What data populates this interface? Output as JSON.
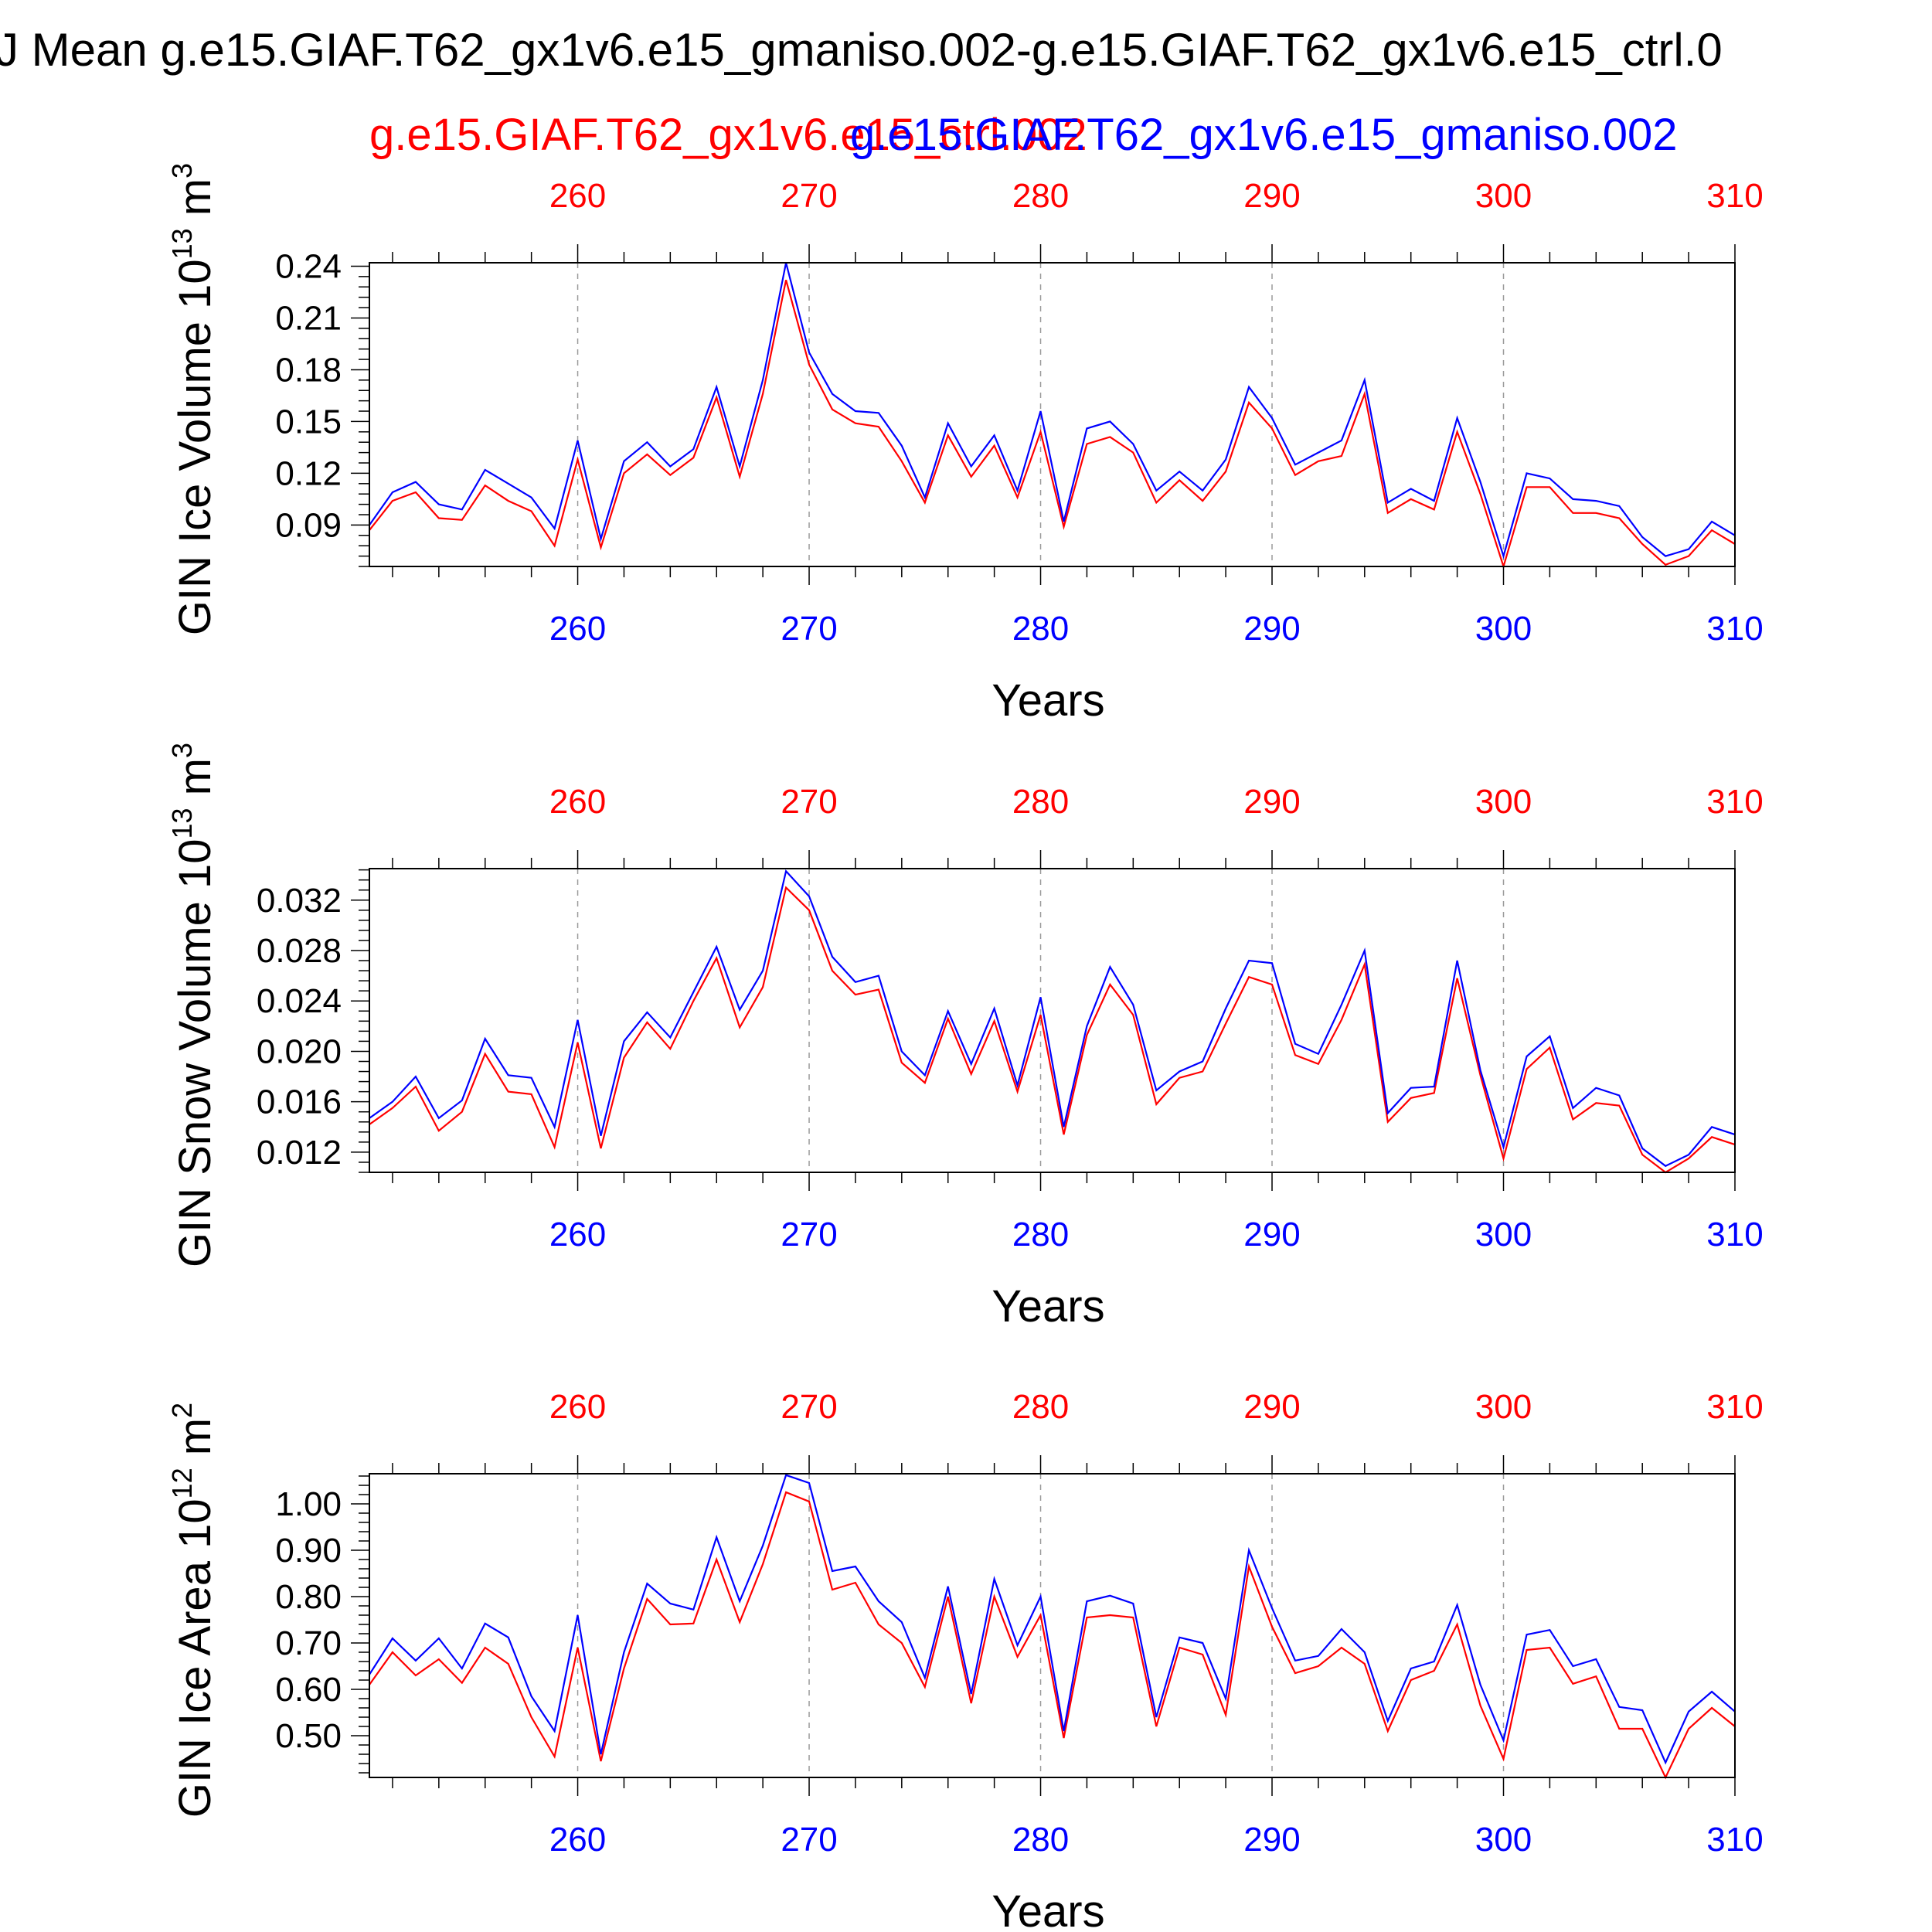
{
  "title": "J Mean g.e15.GIAF.T62_gx1v6.e15_gmaniso.002-g.e15.GIAF.T62_gx1v6.e15_ctrl.0",
  "legend": {
    "ctrl": "g.e15.GIAF.T62_gx1v6.e15_ctrl.002",
    "gmaniso": "g.e15.GIAF.T62_gx1v6.e15_gmaniso.002"
  },
  "colors": {
    "ctrl": "#ff0000",
    "gmaniso": "#0000ff",
    "axis": "#000000",
    "grid": "#9a9a9a"
  },
  "chart_data": [
    {
      "type": "line",
      "ylabel_base": "GIN Ice Volume 10",
      "ylabel_exp": "13",
      "ylabel_unit": " m",
      "ylabel_unit_exp": "3",
      "xlabel": "Years",
      "xlim": [
        251,
        310
      ],
      "ylim": [
        0.066,
        0.242
      ],
      "x_ticks": [
        260,
        270,
        280,
        290,
        300,
        310
      ],
      "y_ticks": [
        0.09,
        0.12,
        0.15,
        0.18,
        0.21,
        0.24
      ],
      "y_tick_labels": [
        "0.09",
        "0.12",
        "0.15",
        "0.18",
        "0.21",
        "0.24"
      ],
      "x_start": 251,
      "series": [
        {
          "name": "g.e15.GIAF.T62_gx1v6.e15_ctrl.002",
          "key": "ctrl",
          "values": [
            0.087,
            0.104,
            0.109,
            0.094,
            0.093,
            0.113,
            0.104,
            0.098,
            0.078,
            0.128,
            0.077,
            0.12,
            0.131,
            0.119,
            0.129,
            0.164,
            0.118,
            0.166,
            0.232,
            0.183,
            0.157,
            0.149,
            0.147,
            0.127,
            0.103,
            0.142,
            0.118,
            0.136,
            0.106,
            0.144,
            0.089,
            0.137,
            0.141,
            0.132,
            0.103,
            0.116,
            0.104,
            0.121,
            0.161,
            0.146,
            0.119,
            0.127,
            0.13,
            0.166,
            0.097,
            0.105,
            0.099,
            0.144,
            0.108,
            0.066,
            0.112,
            0.112,
            0.097,
            0.097,
            0.094,
            0.079,
            0.067,
            0.072,
            0.087,
            0.079
          ]
        },
        {
          "name": "g.e15.GIAF.T62_gx1v6.e15_gmaniso.002",
          "key": "gmaniso",
          "values": [
            0.09,
            0.109,
            0.115,
            0.102,
            0.099,
            0.122,
            0.114,
            0.106,
            0.088,
            0.139,
            0.082,
            0.127,
            0.138,
            0.124,
            0.134,
            0.17,
            0.124,
            0.174,
            0.242,
            0.19,
            0.166,
            0.156,
            0.155,
            0.136,
            0.106,
            0.149,
            0.124,
            0.142,
            0.11,
            0.156,
            0.092,
            0.146,
            0.15,
            0.137,
            0.11,
            0.121,
            0.11,
            0.128,
            0.17,
            0.152,
            0.125,
            0.132,
            0.139,
            0.174,
            0.103,
            0.111,
            0.104,
            0.152,
            0.115,
            0.072,
            0.12,
            0.117,
            0.105,
            0.104,
            0.101,
            0.083,
            0.072,
            0.076,
            0.092,
            0.084
          ]
        }
      ]
    },
    {
      "type": "line",
      "ylabel_base": "GIN Snow Volume 10",
      "ylabel_exp": "13",
      "ylabel_unit": " m",
      "ylabel_unit_exp": "3",
      "xlabel": "Years",
      "xlim": [
        251,
        310
      ],
      "ylim": [
        0.0104,
        0.0345
      ],
      "x_ticks": [
        260,
        270,
        280,
        290,
        300,
        310
      ],
      "y_ticks": [
        0.012,
        0.016,
        0.02,
        0.024,
        0.028,
        0.032
      ],
      "y_tick_labels": [
        "0.012",
        "0.016",
        "0.020",
        "0.024",
        "0.028",
        "0.032"
      ],
      "x_start": 251,
      "series": [
        {
          "name": "g.e15.GIAF.T62_gx1v6.e15_ctrl.002",
          "key": "ctrl",
          "values": [
            0.0142,
            0.0155,
            0.0172,
            0.0137,
            0.0152,
            0.0198,
            0.0168,
            0.0166,
            0.0124,
            0.0207,
            0.0123,
            0.0195,
            0.0223,
            0.0202,
            0.024,
            0.0274,
            0.0219,
            0.0251,
            0.033,
            0.0312,
            0.0264,
            0.0245,
            0.0249,
            0.0191,
            0.0175,
            0.0226,
            0.0182,
            0.0224,
            0.0168,
            0.0229,
            0.0134,
            0.0213,
            0.0253,
            0.0229,
            0.0158,
            0.0179,
            0.0184,
            0.0222,
            0.0259,
            0.0253,
            0.0197,
            0.019,
            0.0225,
            0.0269,
            0.0144,
            0.0163,
            0.0167,
            0.0258,
            0.0181,
            0.0115,
            0.0186,
            0.0203,
            0.0146,
            0.0159,
            0.0157,
            0.0118,
            0.0104,
            0.0115,
            0.0132,
            0.0126
          ]
        },
        {
          "name": "g.e15.GIAF.T62_gx1v6.e15_gmaniso.002",
          "key": "gmaniso",
          "values": [
            0.0147,
            0.016,
            0.018,
            0.0147,
            0.0161,
            0.021,
            0.0181,
            0.0179,
            0.014,
            0.0225,
            0.0133,
            0.0208,
            0.0231,
            0.0211,
            0.0247,
            0.0283,
            0.0233,
            0.0264,
            0.0343,
            0.0323,
            0.0275,
            0.0255,
            0.026,
            0.02,
            0.0181,
            0.0232,
            0.019,
            0.0234,
            0.0173,
            0.0243,
            0.014,
            0.022,
            0.0267,
            0.0237,
            0.0169,
            0.0184,
            0.0192,
            0.0234,
            0.0272,
            0.027,
            0.0206,
            0.0198,
            0.0237,
            0.028,
            0.0151,
            0.0171,
            0.0172,
            0.0272,
            0.0185,
            0.0124,
            0.0196,
            0.0212,
            0.0155,
            0.0171,
            0.0165,
            0.0123,
            0.0109,
            0.0118,
            0.014,
            0.0134
          ]
        }
      ]
    },
    {
      "type": "line",
      "ylabel_base": "GIN Ice Area 10",
      "ylabel_exp": "12",
      "ylabel_unit": " m",
      "ylabel_unit_exp": "2",
      "xlabel": "Years",
      "xlim": [
        251,
        310
      ],
      "ylim": [
        0.41,
        1.065
      ],
      "x_ticks": [
        260,
        270,
        280,
        290,
        300,
        310
      ],
      "y_ticks": [
        0.5,
        0.6,
        0.7,
        0.8,
        0.9,
        1.0
      ],
      "y_tick_labels": [
        "0.50",
        "0.60",
        "0.70",
        "0.80",
        "0.90",
        "1.00"
      ],
      "x_start": 251,
      "series": [
        {
          "name": "g.e15.GIAF.T62_gx1v6.e15_ctrl.002",
          "key": "ctrl",
          "values": [
            0.61,
            0.68,
            0.63,
            0.665,
            0.614,
            0.69,
            0.655,
            0.54,
            0.455,
            0.69,
            0.445,
            0.645,
            0.795,
            0.74,
            0.742,
            0.88,
            0.745,
            0.87,
            1.025,
            1.005,
            0.815,
            0.83,
            0.74,
            0.7,
            0.605,
            0.8,
            0.57,
            0.8,
            0.67,
            0.76,
            0.495,
            0.755,
            0.76,
            0.755,
            0.52,
            0.69,
            0.675,
            0.545,
            0.865,
            0.735,
            0.635,
            0.65,
            0.69,
            0.655,
            0.51,
            0.62,
            0.64,
            0.74,
            0.565,
            0.45,
            0.685,
            0.69,
            0.612,
            0.628,
            0.515,
            0.515,
            0.41,
            0.515,
            0.56,
            0.52
          ]
        },
        {
          "name": "g.e15.GIAF.T62_gx1v6.e15_gmaniso.002",
          "key": "gmaniso",
          "values": [
            0.632,
            0.71,
            0.662,
            0.71,
            0.645,
            0.742,
            0.712,
            0.585,
            0.51,
            0.76,
            0.46,
            0.68,
            0.828,
            0.785,
            0.772,
            0.928,
            0.79,
            0.91,
            1.062,
            1.045,
            0.855,
            0.865,
            0.79,
            0.745,
            0.625,
            0.822,
            0.59,
            0.838,
            0.695,
            0.8,
            0.51,
            0.79,
            0.802,
            0.785,
            0.54,
            0.712,
            0.7,
            0.58,
            0.9,
            0.775,
            0.662,
            0.672,
            0.73,
            0.68,
            0.532,
            0.645,
            0.66,
            0.782,
            0.61,
            0.49,
            0.718,
            0.728,
            0.65,
            0.665,
            0.562,
            0.555,
            0.442,
            0.552,
            0.595,
            0.552
          ]
        }
      ]
    }
  ]
}
